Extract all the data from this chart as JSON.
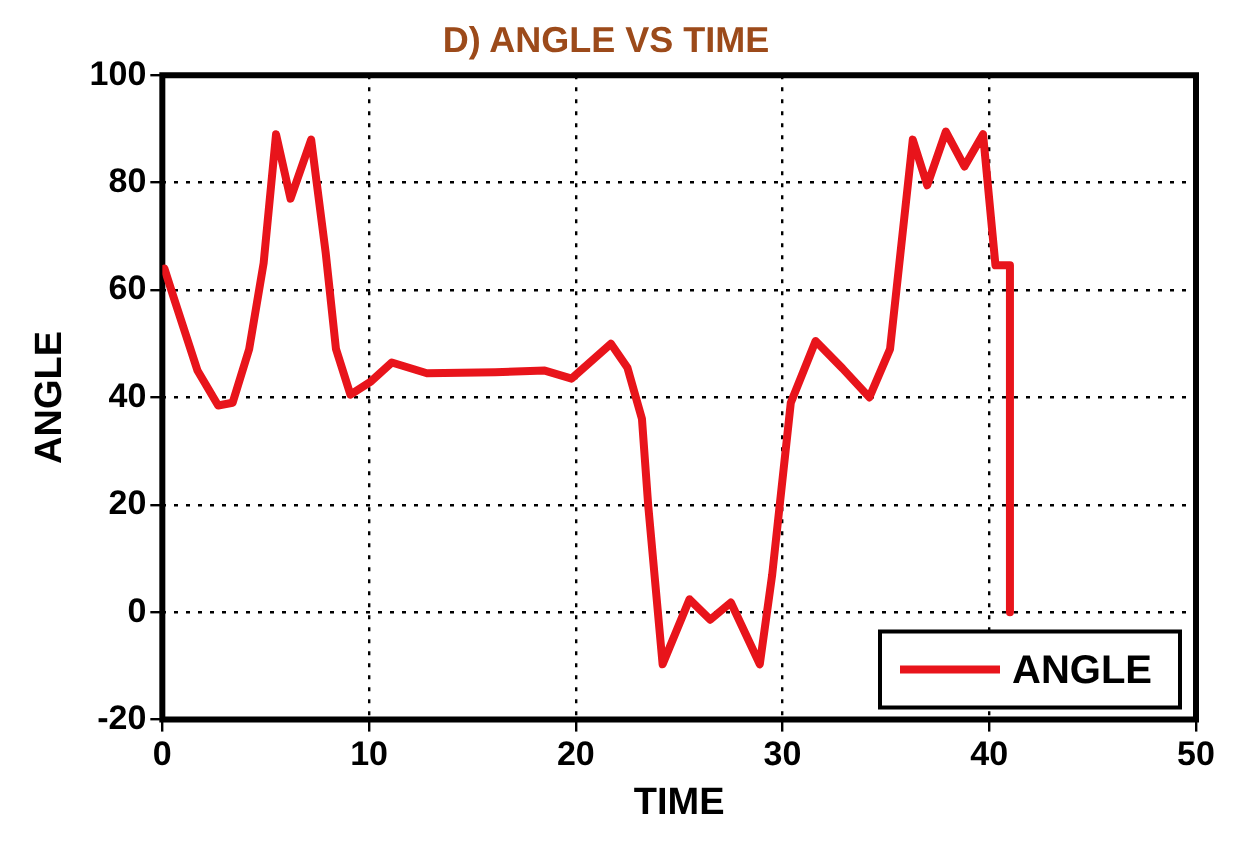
{
  "chart_data": {
    "type": "line",
    "title": "D) ANGLE VS TIME",
    "xlabel": "TIME",
    "ylabel": "ANGLE",
    "xlim": [
      0,
      50
    ],
    "xticks": [
      0,
      10,
      20,
      30,
      40,
      50
    ],
    "ylim": [
      -20,
      100
    ],
    "yticks": [
      -20,
      0,
      20,
      40,
      60,
      80,
      100
    ],
    "grid": true,
    "legend": "bottom right",
    "marker": "none",
    "line_style": "solid",
    "series": [
      {
        "name": "ANGLE",
        "color": "#e8141b",
        "x": [
          0.1,
          0.6,
          1.7,
          2.7,
          3.4,
          4.2,
          4.9,
          5.5,
          6.2,
          7.2,
          7.9,
          8.4,
          9.1,
          10.1,
          11.1,
          12.8,
          16.1,
          18.5,
          19.8,
          21.7,
          22.5,
          23.2,
          23.5,
          24.2,
          25.5,
          26.5,
          27.5,
          28.9,
          29.5,
          30.4,
          31.6,
          32.9,
          34.2,
          35.2,
          36.3,
          37.0,
          37.9,
          38.8,
          39.7,
          40.3,
          41.0,
          41.0
        ],
        "values": [
          64,
          58,
          45,
          38.5,
          39,
          49,
          65,
          89,
          77,
          88,
          67,
          49,
          40.5,
          43,
          46.5,
          44.5,
          44.7,
          45,
          43.5,
          50,
          45.5,
          36,
          20,
          -9.7,
          2.4,
          -1.4,
          1.8,
          -9.7,
          7,
          39,
          50.5,
          45.4,
          40,
          49,
          88,
          79.5,
          89.5,
          83,
          89,
          64.6,
          64.6,
          0
        ]
      }
    ]
  }
}
